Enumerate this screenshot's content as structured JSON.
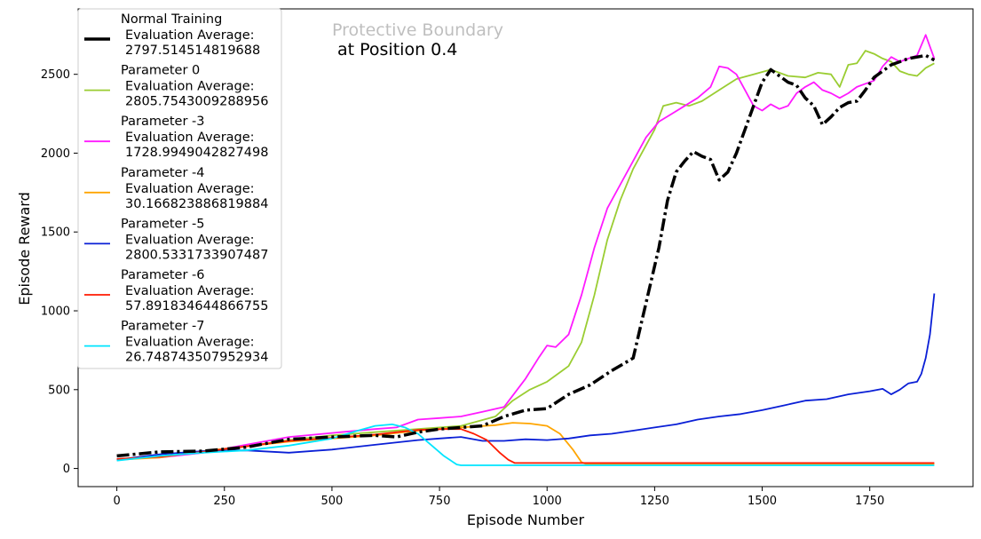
{
  "chart_data": {
    "type": "line",
    "title_line1": "Protective Boundary",
    "title_line2": "at Position 0.4",
    "xlabel": "Episode Number",
    "ylabel": "Episode Reward",
    "xlim": [
      -90,
      1990
    ],
    "ylim": [
      -115,
      2915
    ],
    "xticks": [
      0,
      250,
      500,
      750,
      1000,
      1250,
      1500,
      1750
    ],
    "yticks": [
      0,
      500,
      1000,
      1500,
      2000,
      2500
    ],
    "legend_position": "upper left",
    "series": [
      {
        "name": "Normal Training",
        "eval_label": "Evaluation Average:",
        "eval_value": "2797.514514819688",
        "color": "#000000",
        "style": "dashdot",
        "width": 3.5,
        "points": [
          [
            0,
            80
          ],
          [
            100,
            105
          ],
          [
            200,
            110
          ],
          [
            300,
            135
          ],
          [
            400,
            185
          ],
          [
            500,
            200
          ],
          [
            600,
            210
          ],
          [
            650,
            200
          ],
          [
            700,
            230
          ],
          [
            750,
            250
          ],
          [
            850,
            270
          ],
          [
            900,
            330
          ],
          [
            950,
            370
          ],
          [
            1000,
            380
          ],
          [
            1050,
            470
          ],
          [
            1100,
            530
          ],
          [
            1150,
            620
          ],
          [
            1200,
            700
          ],
          [
            1230,
            1050
          ],
          [
            1260,
            1400
          ],
          [
            1280,
            1700
          ],
          [
            1300,
            1880
          ],
          [
            1320,
            1950
          ],
          [
            1340,
            2010
          ],
          [
            1360,
            1980
          ],
          [
            1380,
            1960
          ],
          [
            1400,
            1830
          ],
          [
            1420,
            1880
          ],
          [
            1440,
            2000
          ],
          [
            1460,
            2150
          ],
          [
            1480,
            2300
          ],
          [
            1500,
            2450
          ],
          [
            1520,
            2530
          ],
          [
            1560,
            2450
          ],
          [
            1580,
            2430
          ],
          [
            1600,
            2350
          ],
          [
            1620,
            2300
          ],
          [
            1640,
            2180
          ],
          [
            1660,
            2230
          ],
          [
            1680,
            2290
          ],
          [
            1700,
            2320
          ],
          [
            1720,
            2330
          ],
          [
            1740,
            2400
          ],
          [
            1760,
            2480
          ],
          [
            1780,
            2520
          ],
          [
            1800,
            2560
          ],
          [
            1820,
            2580
          ],
          [
            1840,
            2600
          ],
          [
            1860,
            2610
          ],
          [
            1880,
            2620
          ],
          [
            1900,
            2590
          ]
        ]
      },
      {
        "name": "Parameter 0",
        "eval_label": "Evaluation Average:",
        "eval_value": "2805.7543009288956",
        "color": "#9acd32",
        "style": "solid",
        "width": 1.8,
        "points": [
          [
            0,
            60
          ],
          [
            100,
            75
          ],
          [
            200,
            100
          ],
          [
            300,
            140
          ],
          [
            400,
            180
          ],
          [
            500,
            210
          ],
          [
            600,
            230
          ],
          [
            700,
            250
          ],
          [
            800,
            270
          ],
          [
            880,
            330
          ],
          [
            920,
            430
          ],
          [
            960,
            500
          ],
          [
            1000,
            550
          ],
          [
            1050,
            650
          ],
          [
            1080,
            800
          ],
          [
            1110,
            1100
          ],
          [
            1140,
            1450
          ],
          [
            1170,
            1700
          ],
          [
            1200,
            1900
          ],
          [
            1230,
            2050
          ],
          [
            1250,
            2150
          ],
          [
            1270,
            2300
          ],
          [
            1300,
            2320
          ],
          [
            1330,
            2300
          ],
          [
            1360,
            2330
          ],
          [
            1400,
            2400
          ],
          [
            1440,
            2470
          ],
          [
            1480,
            2500
          ],
          [
            1520,
            2530
          ],
          [
            1560,
            2490
          ],
          [
            1600,
            2480
          ],
          [
            1630,
            2510
          ],
          [
            1660,
            2500
          ],
          [
            1680,
            2420
          ],
          [
            1700,
            2560
          ],
          [
            1720,
            2570
          ],
          [
            1740,
            2650
          ],
          [
            1760,
            2630
          ],
          [
            1780,
            2600
          ],
          [
            1800,
            2580
          ],
          [
            1820,
            2520
          ],
          [
            1840,
            2500
          ],
          [
            1860,
            2490
          ],
          [
            1880,
            2540
          ],
          [
            1900,
            2570
          ]
        ]
      },
      {
        "name": "Parameter -3",
        "eval_label": "Evaluation Average:",
        "eval_value": "1728.9949042827498",
        "color": "#ff1aff",
        "style": "solid",
        "width": 1.8,
        "points": [
          [
            0,
            60
          ],
          [
            100,
            70
          ],
          [
            200,
            100
          ],
          [
            300,
            150
          ],
          [
            400,
            200
          ],
          [
            500,
            225
          ],
          [
            600,
            250
          ],
          [
            650,
            260
          ],
          [
            700,
            310
          ],
          [
            750,
            320
          ],
          [
            800,
            330
          ],
          [
            850,
            360
          ],
          [
            900,
            390
          ],
          [
            950,
            570
          ],
          [
            980,
            700
          ],
          [
            1000,
            780
          ],
          [
            1020,
            770
          ],
          [
            1050,
            850
          ],
          [
            1080,
            1100
          ],
          [
            1110,
            1400
          ],
          [
            1140,
            1650
          ],
          [
            1170,
            1800
          ],
          [
            1200,
            1950
          ],
          [
            1230,
            2100
          ],
          [
            1260,
            2200
          ],
          [
            1290,
            2250
          ],
          [
            1320,
            2300
          ],
          [
            1350,
            2350
          ],
          [
            1380,
            2420
          ],
          [
            1400,
            2550
          ],
          [
            1420,
            2540
          ],
          [
            1440,
            2500
          ],
          [
            1460,
            2400
          ],
          [
            1480,
            2300
          ],
          [
            1500,
            2270
          ],
          [
            1520,
            2310
          ],
          [
            1540,
            2280
          ],
          [
            1560,
            2300
          ],
          [
            1580,
            2380
          ],
          [
            1600,
            2420
          ],
          [
            1620,
            2450
          ],
          [
            1640,
            2400
          ],
          [
            1660,
            2380
          ],
          [
            1680,
            2350
          ],
          [
            1700,
            2380
          ],
          [
            1720,
            2420
          ],
          [
            1740,
            2440
          ],
          [
            1760,
            2460
          ],
          [
            1780,
            2550
          ],
          [
            1800,
            2610
          ],
          [
            1820,
            2580
          ],
          [
            1840,
            2600
          ],
          [
            1860,
            2620
          ],
          [
            1880,
            2750
          ],
          [
            1900,
            2600
          ]
        ]
      },
      {
        "name": "Parameter -4",
        "eval_label": "Evaluation Average:",
        "eval_value": "30.166823886819884",
        "color": "#ffa500",
        "style": "solid",
        "width": 1.8,
        "points": [
          [
            0,
            55
          ],
          [
            100,
            70
          ],
          [
            200,
            110
          ],
          [
            300,
            140
          ],
          [
            400,
            170
          ],
          [
            500,
            190
          ],
          [
            600,
            210
          ],
          [
            700,
            240
          ],
          [
            800,
            260
          ],
          [
            880,
            275
          ],
          [
            920,
            290
          ],
          [
            960,
            285
          ],
          [
            1000,
            270
          ],
          [
            1030,
            220
          ],
          [
            1060,
            120
          ],
          [
            1080,
            40
          ],
          [
            1090,
            30
          ],
          [
            1900,
            30
          ]
        ]
      },
      {
        "name": "Parameter -5",
        "eval_label": "Evaluation Average:",
        "eval_value": "2800.5331733907487",
        "color": "#0a1fd6",
        "style": "solid",
        "width": 1.8,
        "points": [
          [
            0,
            55
          ],
          [
            100,
            90
          ],
          [
            200,
            110
          ],
          [
            300,
            115
          ],
          [
            400,
            100
          ],
          [
            500,
            120
          ],
          [
            600,
            150
          ],
          [
            700,
            180
          ],
          [
            750,
            190
          ],
          [
            800,
            200
          ],
          [
            850,
            175
          ],
          [
            900,
            175
          ],
          [
            950,
            185
          ],
          [
            1000,
            180
          ],
          [
            1050,
            190
          ],
          [
            1100,
            210
          ],
          [
            1150,
            220
          ],
          [
            1200,
            240
          ],
          [
            1250,
            260
          ],
          [
            1300,
            280
          ],
          [
            1350,
            310
          ],
          [
            1400,
            330
          ],
          [
            1450,
            345
          ],
          [
            1500,
            370
          ],
          [
            1550,
            400
          ],
          [
            1600,
            430
          ],
          [
            1650,
            440
          ],
          [
            1700,
            470
          ],
          [
            1750,
            490
          ],
          [
            1780,
            505
          ],
          [
            1800,
            470
          ],
          [
            1820,
            500
          ],
          [
            1840,
            540
          ],
          [
            1860,
            550
          ],
          [
            1870,
            600
          ],
          [
            1880,
            700
          ],
          [
            1890,
            850
          ],
          [
            1900,
            1110
          ]
        ]
      },
      {
        "name": "Parameter -6",
        "eval_label": "Evaluation Average:",
        "eval_value": "57.891834644866755",
        "color": "#ff1a00",
        "style": "solid",
        "width": 1.8,
        "points": [
          [
            0,
            60
          ],
          [
            100,
            75
          ],
          [
            200,
            105
          ],
          [
            300,
            140
          ],
          [
            400,
            175
          ],
          [
            500,
            195
          ],
          [
            600,
            215
          ],
          [
            700,
            245
          ],
          [
            760,
            250
          ],
          [
            800,
            250
          ],
          [
            830,
            220
          ],
          [
            860,
            180
          ],
          [
            890,
            100
          ],
          [
            910,
            55
          ],
          [
            925,
            35
          ],
          [
            1900,
            35
          ]
        ]
      },
      {
        "name": "Parameter -7",
        "eval_label": "Evaluation Average:",
        "eval_value": "26.748743507952934",
        "color": "#00e5ff",
        "style": "solid",
        "width": 1.8,
        "points": [
          [
            0,
            50
          ],
          [
            100,
            80
          ],
          [
            200,
            100
          ],
          [
            300,
            115
          ],
          [
            400,
            145
          ],
          [
            500,
            190
          ],
          [
            560,
            240
          ],
          [
            600,
            270
          ],
          [
            640,
            280
          ],
          [
            670,
            260
          ],
          [
            700,
            220
          ],
          [
            730,
            150
          ],
          [
            760,
            80
          ],
          [
            790,
            25
          ],
          [
            800,
            20
          ],
          [
            1900,
            20
          ]
        ]
      }
    ]
  }
}
